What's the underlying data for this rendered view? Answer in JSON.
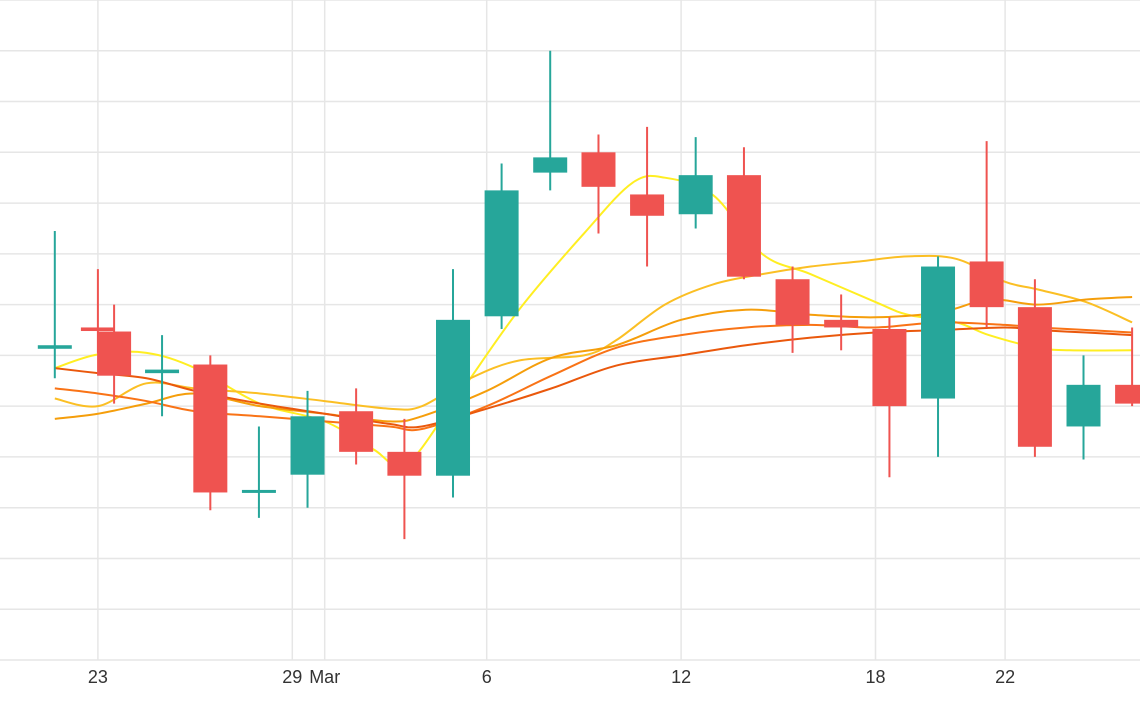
{
  "chart_data": {
    "type": "candlestick",
    "title": "",
    "xlabel": "",
    "ylabel": "",
    "x_tick_labels": [
      {
        "label": "23",
        "day": 1
      },
      {
        "label": "29",
        "day": 7
      },
      {
        "label": "Mar",
        "day": 8
      },
      {
        "label": "6",
        "day": 13
      },
      {
        "label": "12",
        "day": 19
      },
      {
        "label": "18",
        "day": 25
      },
      {
        "label": "22",
        "day": 29
      }
    ],
    "y_range": [
      0,
      13
    ],
    "y_grid_lines": 13,
    "grid": true,
    "legend": "none",
    "colors": {
      "up": "#26a69a",
      "down": "#ef5350",
      "grid": "#e6e6e6",
      "ma_series": [
        "#ffee22",
        "#fbbf24",
        "#f59e0b",
        "#f97316",
        "#ea580c"
      ]
    },
    "candles": [
      {
        "day": -0.33,
        "open": 6.13,
        "high": 8.45,
        "low": 5.55,
        "close": 6.2
      },
      {
        "day": 1.0,
        "open": 6.55,
        "high": 7.7,
        "low": 6.05,
        "close": 6.48
      },
      {
        "day": 1.5,
        "open": 6.47,
        "high": 7.0,
        "low": 5.05,
        "close": 5.6
      },
      {
        "day": 2.98,
        "open": 5.65,
        "high": 6.4,
        "low": 4.8,
        "close": 5.72
      },
      {
        "day": 4.47,
        "open": 5.82,
        "high": 6.0,
        "low": 2.95,
        "close": 3.3
      },
      {
        "day": 5.97,
        "open": 3.3,
        "high": 4.6,
        "low": 2.8,
        "close": 3.35
      },
      {
        "day": 7.47,
        "open": 3.65,
        "high": 5.3,
        "low": 3.0,
        "close": 4.8
      },
      {
        "day": 8.97,
        "open": 4.9,
        "high": 5.35,
        "low": 3.85,
        "close": 4.1
      },
      {
        "day": 10.46,
        "open": 4.1,
        "high": 4.75,
        "low": 2.38,
        "close": 3.63
      },
      {
        "day": 11.96,
        "open": 3.63,
        "high": 7.7,
        "low": 3.2,
        "close": 6.7
      },
      {
        "day": 13.46,
        "open": 6.77,
        "high": 9.78,
        "low": 6.52,
        "close": 9.25
      },
      {
        "day": 14.96,
        "open": 9.6,
        "high": 12.0,
        "low": 9.25,
        "close": 9.9
      },
      {
        "day": 16.45,
        "open": 10.0,
        "high": 10.35,
        "low": 8.4,
        "close": 9.32
      },
      {
        "day": 17.95,
        "open": 9.17,
        "high": 10.5,
        "low": 7.75,
        "close": 8.75
      },
      {
        "day": 19.45,
        "open": 8.78,
        "high": 10.3,
        "low": 8.5,
        "close": 9.55
      },
      {
        "day": 20.94,
        "open": 9.55,
        "high": 10.1,
        "low": 7.5,
        "close": 7.55
      },
      {
        "day": 22.44,
        "open": 7.5,
        "high": 7.75,
        "low": 6.05,
        "close": 6.6
      },
      {
        "day": 23.94,
        "open": 6.7,
        "high": 7.2,
        "low": 6.1,
        "close": 6.55
      },
      {
        "day": 25.43,
        "open": 6.52,
        "high": 6.75,
        "low": 3.6,
        "close": 5.0
      },
      {
        "day": 26.93,
        "open": 5.15,
        "high": 7.95,
        "low": 4.0,
        "close": 7.75
      },
      {
        "day": 28.43,
        "open": 7.85,
        "high": 10.22,
        "low": 6.55,
        "close": 6.95
      },
      {
        "day": 29.92,
        "open": 6.95,
        "high": 7.5,
        "low": 4.0,
        "close": 4.2
      },
      {
        "day": 31.42,
        "open": 4.6,
        "high": 6.0,
        "low": 3.95,
        "close": 5.42
      },
      {
        "day": 32.92,
        "open": 5.42,
        "high": 6.55,
        "low": 5.0,
        "close": 5.05
      }
    ],
    "series": [
      {
        "values": [
          [
            -0.33,
            5.75
          ],
          [
            1.0,
            6.02
          ],
          [
            2.5,
            6.05
          ],
          [
            4.0,
            5.75
          ],
          [
            6.0,
            5.05
          ],
          [
            8.0,
            4.7
          ],
          [
            9.5,
            4.15
          ],
          [
            10.5,
            3.85
          ],
          [
            12.0,
            5.1
          ],
          [
            14.0,
            6.9
          ],
          [
            16.0,
            8.4
          ],
          [
            17.5,
            9.4
          ],
          [
            18.5,
            9.5
          ],
          [
            20.0,
            9.15
          ],
          [
            21.5,
            8.0
          ],
          [
            23.0,
            7.6
          ],
          [
            25.0,
            7.05
          ],
          [
            26.0,
            6.8
          ],
          [
            27.5,
            6.65
          ],
          [
            28.5,
            6.4
          ],
          [
            30.0,
            6.15
          ],
          [
            31.0,
            6.1
          ],
          [
            32.92,
            6.1
          ]
        ]
      },
      {
        "values": [
          [
            -0.33,
            5.15
          ],
          [
            1.0,
            5.0
          ],
          [
            2.5,
            5.45
          ],
          [
            4.0,
            5.35
          ],
          [
            6.0,
            5.25
          ],
          [
            8.0,
            5.1
          ],
          [
            10.0,
            4.95
          ],
          [
            11.0,
            5.0
          ],
          [
            12.5,
            5.55
          ],
          [
            14.0,
            5.9
          ],
          [
            16.0,
            6.0
          ],
          [
            17.0,
            6.3
          ],
          [
            18.5,
            7.0
          ],
          [
            20.0,
            7.4
          ],
          [
            21.5,
            7.6
          ],
          [
            23.0,
            7.75
          ],
          [
            24.5,
            7.85
          ],
          [
            26.0,
            7.95
          ],
          [
            27.5,
            7.9
          ],
          [
            29.0,
            7.45
          ],
          [
            30.0,
            7.3
          ],
          [
            31.5,
            7.05
          ],
          [
            32.92,
            6.65
          ]
        ]
      },
      {
        "values": [
          [
            -0.33,
            4.75
          ],
          [
            1.0,
            4.85
          ],
          [
            2.5,
            5.05
          ],
          [
            4.0,
            5.25
          ],
          [
            6.0,
            5.0
          ],
          [
            8.0,
            4.85
          ],
          [
            10.0,
            4.7
          ],
          [
            11.0,
            4.8
          ],
          [
            13.0,
            5.3
          ],
          [
            15.0,
            5.95
          ],
          [
            17.0,
            6.2
          ],
          [
            19.0,
            6.7
          ],
          [
            21.0,
            6.9
          ],
          [
            23.0,
            6.8
          ],
          [
            25.0,
            6.75
          ],
          [
            27.0,
            6.85
          ],
          [
            28.5,
            7.1
          ],
          [
            30.0,
            7.0
          ],
          [
            31.5,
            7.1
          ],
          [
            32.92,
            7.15
          ]
        ]
      },
      {
        "values": [
          [
            -0.33,
            5.35
          ],
          [
            1.0,
            5.25
          ],
          [
            2.5,
            5.1
          ],
          [
            4.0,
            4.9
          ],
          [
            6.0,
            4.8
          ],
          [
            8.0,
            4.7
          ],
          [
            10.0,
            4.6
          ],
          [
            11.0,
            4.55
          ],
          [
            13.0,
            5.0
          ],
          [
            15.0,
            5.6
          ],
          [
            17.0,
            6.15
          ],
          [
            19.0,
            6.4
          ],
          [
            21.0,
            6.55
          ],
          [
            23.0,
            6.6
          ],
          [
            25.0,
            6.55
          ],
          [
            27.0,
            6.65
          ],
          [
            29.0,
            6.6
          ],
          [
            30.0,
            6.55
          ],
          [
            31.5,
            6.5
          ],
          [
            32.92,
            6.45
          ]
        ]
      },
      {
        "values": [
          [
            -0.33,
            5.75
          ],
          [
            1.0,
            5.65
          ],
          [
            2.5,
            5.55
          ],
          [
            4.0,
            5.3
          ],
          [
            6.0,
            5.05
          ],
          [
            8.0,
            4.85
          ],
          [
            10.0,
            4.65
          ],
          [
            11.0,
            4.6
          ],
          [
            13.0,
            4.95
          ],
          [
            15.0,
            5.35
          ],
          [
            17.0,
            5.8
          ],
          [
            19.0,
            6.0
          ],
          [
            21.0,
            6.2
          ],
          [
            23.0,
            6.35
          ],
          [
            25.0,
            6.45
          ],
          [
            27.0,
            6.5
          ],
          [
            29.0,
            6.55
          ],
          [
            30.0,
            6.5
          ],
          [
            31.5,
            6.45
          ],
          [
            32.92,
            6.4
          ]
        ]
      }
    ]
  }
}
